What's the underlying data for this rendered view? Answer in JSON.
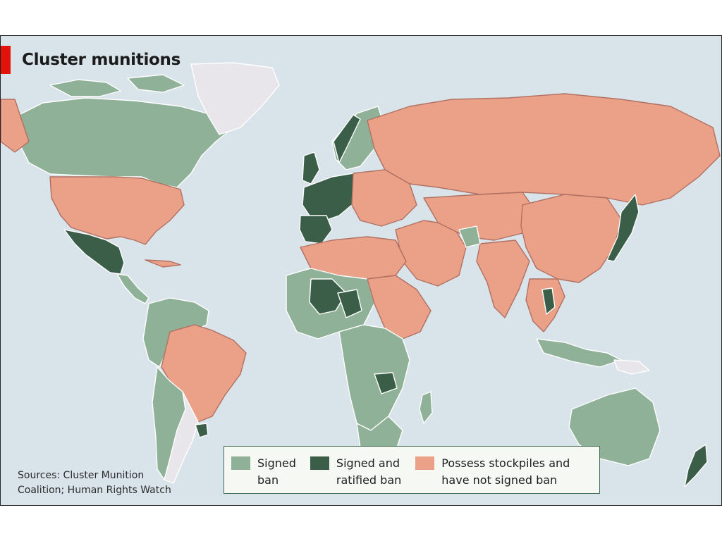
{
  "map": {
    "title": "Cluster munitions",
    "source_note": "Sources: Cluster Munition\nCoalition; Human Rights Watch",
    "colors": {
      "ocean": "#d9e3ea",
      "signed": "#8fb197",
      "ratified": "#3b5e49",
      "stockpile": "#eba187",
      "neutral": "#e8e6ea",
      "border": "#b07062",
      "coast": "#ffffff",
      "accent": "#e3120b"
    },
    "legend": [
      {
        "key": "signed",
        "label": "Signed\nban"
      },
      {
        "key": "ratified",
        "label": "Signed and\nratified ban"
      },
      {
        "key": "stockpile",
        "label": "Possess stockpiles and\nhave not signed ban"
      }
    ]
  }
}
